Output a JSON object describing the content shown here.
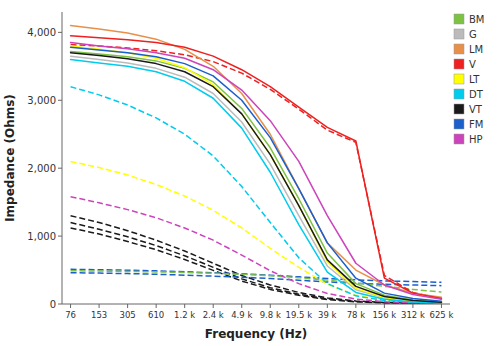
{
  "chart_data": {
    "type": "line",
    "x_label": "Frequency (Hz)",
    "y_label": "Impedance (Ohms)",
    "categories": [
      "76",
      "153",
      "305",
      "610",
      "1.2 k",
      "2.4 k",
      "4.9 k",
      "9.8 k",
      "19.5 k",
      "39 k",
      "78 k",
      "156 k",
      "312 k",
      "625 k"
    ],
    "ylim": [
      0,
      4300
    ],
    "yticks": [
      0,
      {
        "value": 1000,
        "label": "1,000"
      },
      {
        "value": 2000,
        "label": "2,000"
      },
      {
        "value": 3000,
        "label": "3,000"
      },
      {
        "value": 4000,
        "label": "4,000"
      }
    ],
    "grid": false,
    "legend": "upper right",
    "series": [
      {
        "name": "BM",
        "color": "#7DC242",
        "line_style": "solid",
        "values": [
          3720,
          3680,
          3640,
          3580,
          3470,
          3270,
          2880,
          2300,
          1550,
          750,
          300,
          130,
          60,
          30
        ]
      },
      {
        "name": "G",
        "color": "#BBBBBB",
        "line_style": "solid",
        "values": [
          3650,
          3600,
          3550,
          3470,
          3340,
          3100,
          2680,
          2060,
          1300,
          560,
          210,
          90,
          40,
          20
        ]
      },
      {
        "name": "LM",
        "color": "#E8904A",
        "line_style": "solid",
        "values": [
          4100,
          4050,
          3990,
          3900,
          3750,
          3500,
          3100,
          2500,
          1700,
          900,
          500,
          280,
          160,
          100
        ]
      },
      {
        "name": "V",
        "color": "#EE2020",
        "line_style": "solid",
        "values": [
          3950,
          3920,
          3890,
          3850,
          3780,
          3650,
          3450,
          3200,
          2900,
          2600,
          2400,
          380,
          160,
          80
        ]
      },
      {
        "name": "LT",
        "color": "#FFFF00",
        "line_style": "solid",
        "values": [
          3800,
          3750,
          3700,
          3620,
          3480,
          3230,
          2800,
          2200,
          1450,
          620,
          230,
          95,
          42,
          20
        ]
      },
      {
        "name": "DT",
        "color": "#00CCEE",
        "line_style": "solid",
        "values": [
          3600,
          3550,
          3500,
          3420,
          3280,
          3030,
          2590,
          1940,
          1170,
          470,
          170,
          70,
          30,
          15
        ]
      },
      {
        "name": "VT",
        "color": "#1A1A1A",
        "line_style": "solid",
        "values": [
          3700,
          3660,
          3610,
          3540,
          3420,
          3200,
          2800,
          2200,
          1450,
          650,
          260,
          110,
          50,
          25
        ]
      },
      {
        "name": "FM",
        "color": "#1A5FCC",
        "line_style": "solid",
        "values": [
          3780,
          3740,
          3700,
          3640,
          3540,
          3360,
          3000,
          2450,
          1700,
          900,
          380,
          160,
          80,
          40
        ]
      },
      {
        "name": "HP",
        "color": "#CC44BB",
        "line_style": "solid",
        "values": [
          3850,
          3800,
          3760,
          3700,
          3620,
          3450,
          3150,
          2700,
          2100,
          1300,
          600,
          280,
          140,
          70
        ]
      },
      {
        "color": "#1A1A1A",
        "line_style": "dashed",
        "values": [
          1300,
          1200,
          1080,
          940,
          780,
          600,
          420,
          280,
          170,
          90,
          45,
          22,
          12,
          8
        ]
      },
      {
        "color": "#1A1A1A",
        "line_style": "dashed",
        "values": [
          1200,
          1100,
          990,
          860,
          710,
          540,
          370,
          240,
          145,
          75,
          37,
          18,
          10,
          6
        ]
      },
      {
        "color": "#1A1A1A",
        "line_style": "dashed",
        "values": [
          1120,
          1030,
          920,
          800,
          655,
          495,
          338,
          215,
          128,
          65,
          32,
          16,
          9,
          6
        ]
      },
      {
        "color": "#1A5FCC",
        "line_style": "dashed",
        "values": [
          510,
          505,
          498,
          488,
          475,
          460,
          445,
          425,
          400,
          375,
          355,
          340,
          330,
          320
        ]
      },
      {
        "color": "#1A5FCC",
        "line_style": "dashed",
        "values": [
          460,
          455,
          448,
          438,
          425,
          410,
          395,
          375,
          350,
          325,
          305,
          290,
          280,
          270
        ]
      },
      {
        "color": "#FFFF00",
        "line_style": "dashed",
        "values": [
          2100,
          2010,
          1900,
          1760,
          1590,
          1380,
          1120,
          820,
          540,
          290,
          130,
          58,
          28,
          15
        ]
      },
      {
        "color": "#00CCEE",
        "line_style": "dashed",
        "values": [
          3200,
          3080,
          2930,
          2740,
          2500,
          2180,
          1730,
          1200,
          680,
          300,
          120,
          50,
          24,
          13
        ]
      },
      {
        "color": "#7DC242",
        "line_style": "dashed",
        "values": [
          490,
          485,
          480,
          473,
          464,
          452,
          437,
          416,
          388,
          352,
          308,
          260,
          215,
          175
        ]
      },
      {
        "color": "#CC44BB",
        "line_style": "dashed",
        "values": [
          1580,
          1490,
          1390,
          1270,
          1120,
          940,
          720,
          490,
          300,
          155,
          72,
          34,
          18,
          11
        ]
      },
      {
        "color": "#EE2020",
        "line_style": "dashed",
        "values": [
          3820,
          3800,
          3770,
          3730,
          3670,
          3570,
          3400,
          3160,
          2870,
          2560,
          2380,
          420,
          170,
          80
        ]
      }
    ]
  }
}
